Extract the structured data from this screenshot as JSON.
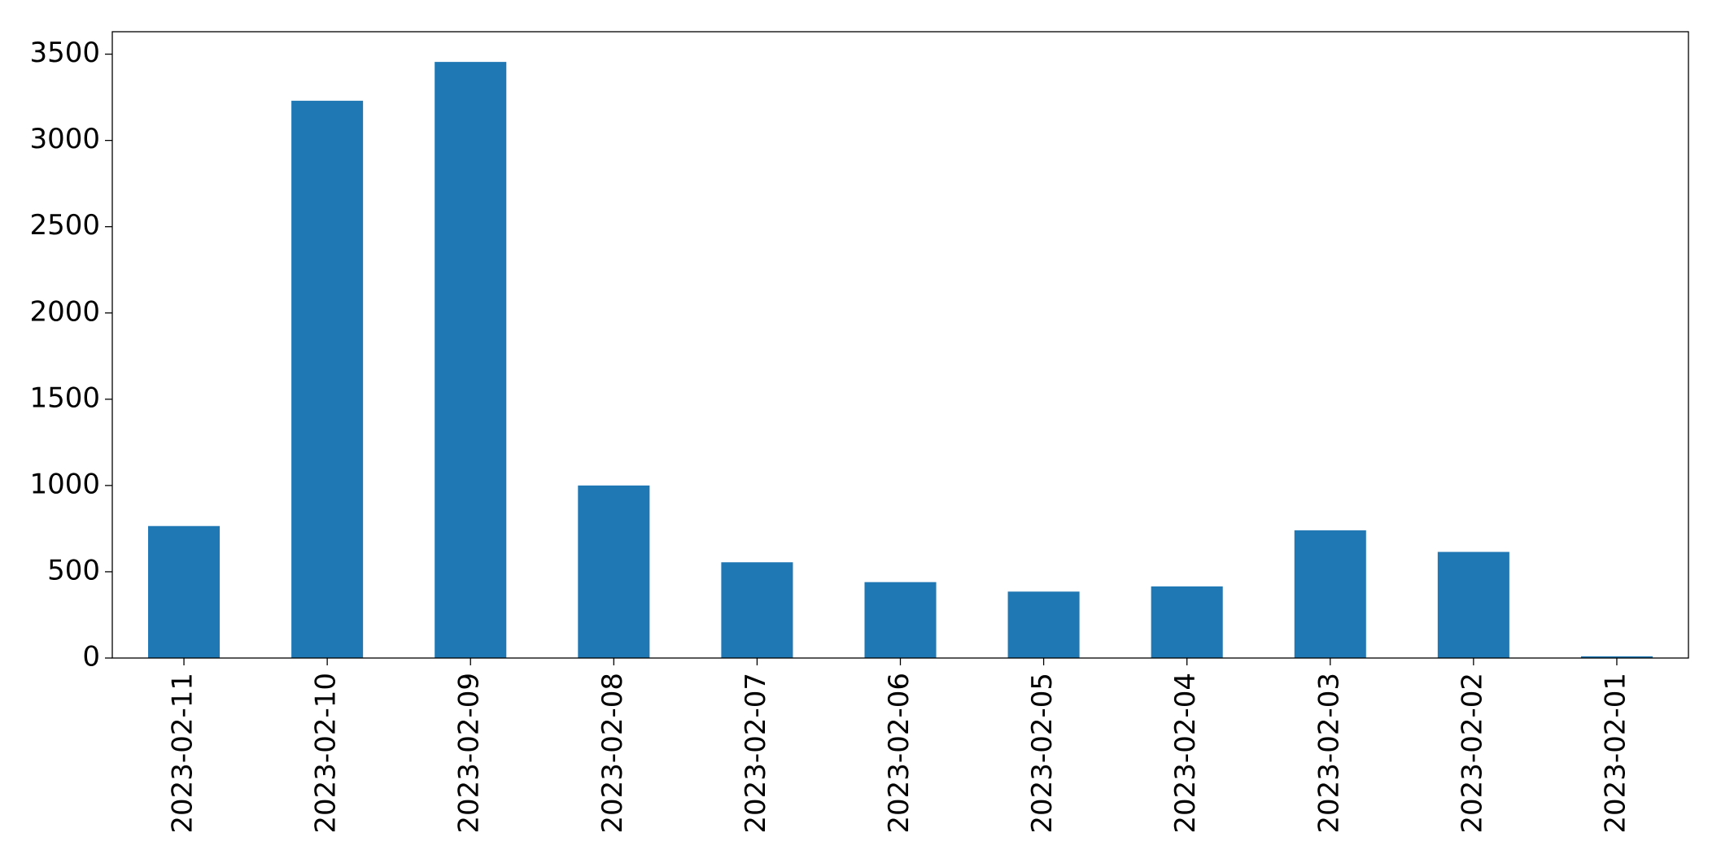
{
  "chart_data": {
    "type": "bar",
    "categories": [
      "2023-02-11",
      "2023-02-10",
      "2023-02-09",
      "2023-02-08",
      "2023-02-07",
      "2023-02-06",
      "2023-02-05",
      "2023-02-04",
      "2023-02-03",
      "2023-02-02",
      "2023-02-01"
    ],
    "values": [
      765,
      3230,
      3455,
      1000,
      555,
      440,
      385,
      415,
      740,
      615,
      10
    ],
    "color": "#1f77b4",
    "ylim": [
      0,
      3630
    ],
    "yticks": [
      0,
      500,
      1000,
      1500,
      2000,
      2500,
      3000,
      3500
    ],
    "grid": false
  }
}
